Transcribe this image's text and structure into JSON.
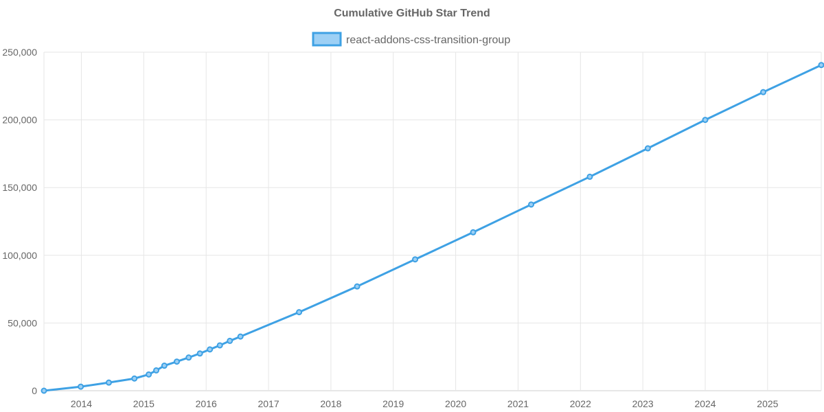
{
  "chart_data": {
    "type": "line",
    "title": "Cumulative GitHub Star Trend",
    "xlabel": "",
    "ylabel": "",
    "grid": true,
    "legend_position": "top-center",
    "colors": {
      "line": "#3ea1e4",
      "fill": "#9dd0f5",
      "grid": "#e6e6e6",
      "text": "#666666"
    },
    "xlim": [
      2013.4,
      2025.86
    ],
    "ylim": [
      0,
      250000
    ],
    "x_ticks": [
      2014,
      2015,
      2016,
      2017,
      2018,
      2019,
      2020,
      2021,
      2022,
      2023,
      2024,
      2025
    ],
    "x_tick_labels": [
      "2014",
      "2015",
      "2016",
      "2017",
      "2018",
      "2019",
      "2020",
      "2021",
      "2022",
      "2023",
      "2024",
      "2025"
    ],
    "y_ticks": [
      0,
      50000,
      100000,
      150000,
      200000,
      250000
    ],
    "y_tick_labels": [
      "0",
      "50,000",
      "100,000",
      "150,000",
      "200,000",
      "250,000"
    ],
    "series": [
      {
        "name": "react-addons-css-transition-group",
        "points": [
          {
            "x": 2013.4,
            "y": 0
          },
          {
            "x": 2013.99,
            "y": 3000
          },
          {
            "x": 2014.44,
            "y": 6000
          },
          {
            "x": 2014.85,
            "y": 9000
          },
          {
            "x": 2015.08,
            "y": 12000
          },
          {
            "x": 2015.2,
            "y": 15000
          },
          {
            "x": 2015.33,
            "y": 18500
          },
          {
            "x": 2015.53,
            "y": 21500
          },
          {
            "x": 2015.72,
            "y": 24500
          },
          {
            "x": 2015.9,
            "y": 27500
          },
          {
            "x": 2016.06,
            "y": 30500
          },
          {
            "x": 2016.22,
            "y": 33500
          },
          {
            "x": 2016.38,
            "y": 36800
          },
          {
            "x": 2016.55,
            "y": 40000
          },
          {
            "x": 2017.49,
            "y": 58000
          },
          {
            "x": 2018.42,
            "y": 77000
          },
          {
            "x": 2019.35,
            "y": 97000
          },
          {
            "x": 2020.28,
            "y": 117000
          },
          {
            "x": 2021.21,
            "y": 137500
          },
          {
            "x": 2022.15,
            "y": 158000
          },
          {
            "x": 2023.08,
            "y": 179000
          },
          {
            "x": 2024.0,
            "y": 200000
          },
          {
            "x": 2024.93,
            "y": 220500
          },
          {
            "x": 2025.86,
            "y": 240500
          }
        ]
      }
    ]
  }
}
